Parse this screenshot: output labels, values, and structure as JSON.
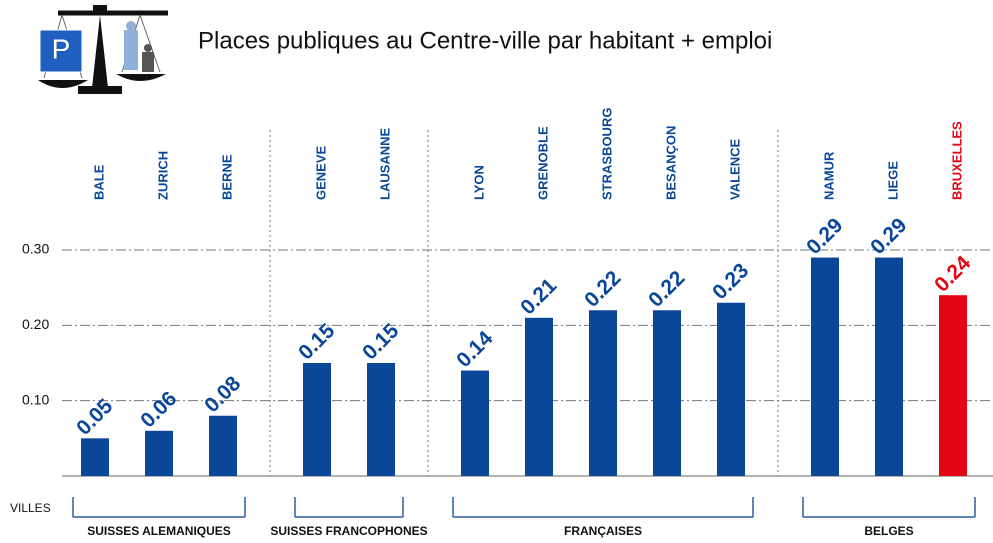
{
  "chart_data": {
    "type": "bar",
    "title": "Places publiques au Centre-ville par habitant + emploi",
    "logo_text": "P",
    "x_label": "VILLES",
    "ylim": [
      0,
      0.3
    ],
    "yticks": [
      {
        "value": 0.1,
        "label": "0.10"
      },
      {
        "value": 0.2,
        "label": "0.20"
      },
      {
        "value": 0.3,
        "label": "0.30"
      }
    ],
    "grid": true,
    "color": "#0a4799",
    "groups": [
      {
        "name": "SUISSES ALEMANIQUES",
        "categories": [
          "BALE",
          "ZURICH",
          "BERNE"
        ],
        "values": [
          0.05,
          0.06,
          0.08
        ],
        "colors": [
          "#0a4799",
          "#0a4799",
          "#0a4799"
        ]
      },
      {
        "name": "SUISSES FRANCOPHONES",
        "categories": [
          "GENEVE",
          "LAUSANNE"
        ],
        "values": [
          0.15,
          0.15
        ],
        "colors": [
          "#0a4799",
          "#0a4799"
        ]
      },
      {
        "name": "FRANÇAISES",
        "categories": [
          "LYON",
          "GRENOBLE",
          "STRASBOURG",
          "BESANÇON",
          "VALENCE"
        ],
        "values": [
          0.14,
          0.21,
          0.22,
          0.22,
          0.23
        ],
        "colors": [
          "#0a4799",
          "#0a4799",
          "#0a4799",
          "#0a4799",
          "#0a4799"
        ]
      },
      {
        "name": "BELGES",
        "categories": [
          "NAMUR",
          "LIEGE",
          "BRUXELLES"
        ],
        "values": [
          0.29,
          0.29,
          0.24
        ],
        "colors": [
          "#0a4799",
          "#0a4799",
          "#e30613"
        ]
      }
    ]
  }
}
